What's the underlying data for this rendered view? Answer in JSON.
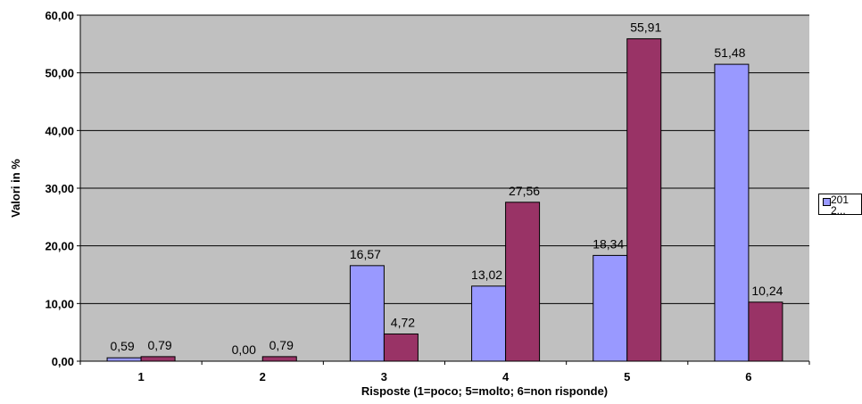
{
  "chart_data": {
    "type": "bar",
    "categories": [
      "1",
      "2",
      "3",
      "4",
      "5",
      "6"
    ],
    "series": [
      {
        "values": [
          0.59,
          0.0,
          16.57,
          13.02,
          18.34,
          51.48
        ],
        "labels": [
          "0,59",
          "0,00",
          "16,57",
          "13,02",
          "18,34",
          "51,48"
        ],
        "color": "#9999ff"
      },
      {
        "values": [
          0.79,
          0.79,
          4.72,
          27.56,
          55.91,
          10.24
        ],
        "labels": [
          "0,79",
          "0,79",
          "4,72",
          "27,56",
          "55,91",
          "10,24"
        ],
        "color": "#993366"
      }
    ],
    "xlabel": "Risposte (1=poco; 5=molto; 6=non risponde)",
    "ylabel": "Valori in %",
    "ylim": [
      0,
      60
    ],
    "yticks": [
      0,
      10,
      20,
      30,
      40,
      50,
      60
    ],
    "ytick_labels": [
      "0,00",
      "10,00",
      "20,00",
      "30,00",
      "40,00",
      "50,00",
      "60,00"
    ],
    "grid": true,
    "plot_background": "#c0c0c0",
    "legend": {
      "placement": "right",
      "entries": [
        {
          "text": "201 2...",
          "color": "#9999ff"
        }
      ]
    }
  }
}
